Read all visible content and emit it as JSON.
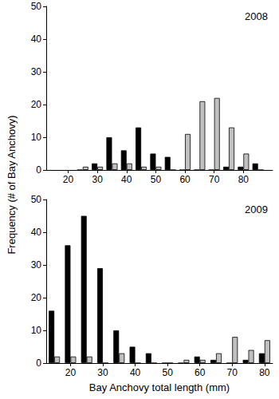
{
  "chart_data": [
    {
      "type": "bar",
      "annotation": "2008",
      "ylabel": "Frequency (# of Bay Anchovy)",
      "x": [
        25,
        30,
        35,
        40,
        45,
        50,
        55,
        60,
        65,
        70,
        75,
        80,
        85
      ],
      "series": [
        {
          "color": "#000000",
          "values": [
            0,
            2,
            10,
            6,
            13,
            5,
            4,
            0,
            0,
            0,
            1,
            1,
            2
          ]
        },
        {
          "color": "#c0c0c0",
          "values": [
            1,
            1,
            2,
            2,
            1,
            1,
            0,
            11,
            21,
            22,
            13,
            5,
            0
          ]
        }
      ],
      "xlim": [
        12.5,
        90
      ],
      "xticks": [
        20,
        30,
        40,
        50,
        60,
        70,
        80
      ],
      "ylim": [
        0,
        50
      ],
      "yticks": [
        0,
        10,
        20,
        30,
        40,
        50
      ],
      "grid": false
    },
    {
      "type": "bar",
      "annotation": "2009",
      "xlabel": "Bay Anchovy total length (mm)",
      "x": [
        15,
        20,
        25,
        30,
        35,
        40,
        45,
        50,
        55,
        60,
        65,
        70,
        75,
        80
      ],
      "series": [
        {
          "color": "#000000",
          "values": [
            16,
            36,
            45,
            29,
            10,
            5,
            3,
            0,
            0,
            2,
            1,
            0,
            1,
            3
          ]
        },
        {
          "color": "#c0c0c0",
          "values": [
            2,
            2,
            2,
            0,
            3,
            0,
            0,
            0,
            1,
            1,
            3,
            8,
            4,
            7
          ]
        }
      ],
      "xlim": [
        12.5,
        82.5
      ],
      "xticks": [
        20,
        30,
        40,
        50,
        60,
        70,
        80
      ],
      "ylim": [
        0,
        50
      ],
      "yticks": [
        0,
        10,
        20,
        30,
        40,
        50
      ],
      "grid": false
    }
  ]
}
